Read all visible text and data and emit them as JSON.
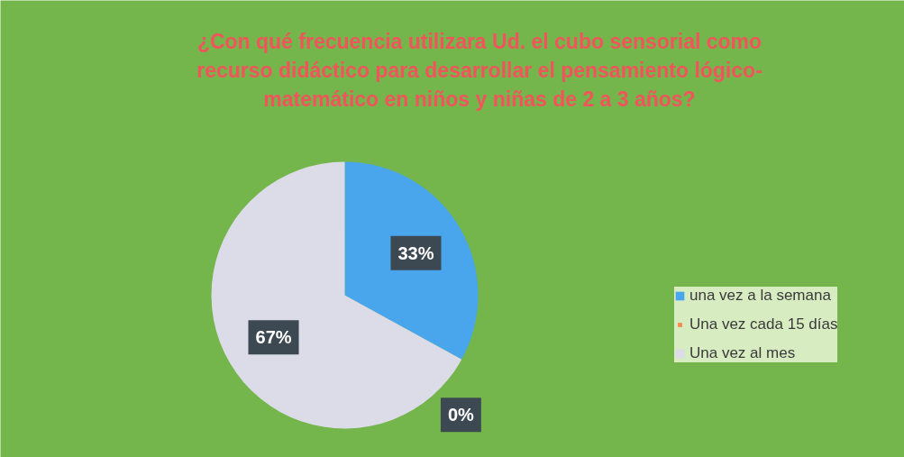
{
  "chart_data": {
    "type": "pie",
    "title": "¿Con qué frecuencia utilizara Ud. el cubo sensorial como recurso didáctico para desarrollar el pensamiento lógico-matemático en niños y niñas de 2 a 3 años?",
    "categories": [
      "una vez a la semana",
      "Una vez cada 15 días",
      "Una vez al mes"
    ],
    "values": [
      33,
      0,
      67
    ],
    "colors": [
      "#4aa6ec",
      "#f5894f",
      "#dcdbe8"
    ],
    "value_labels": [
      "33%",
      "0%",
      "67%"
    ],
    "legend": "right"
  }
}
